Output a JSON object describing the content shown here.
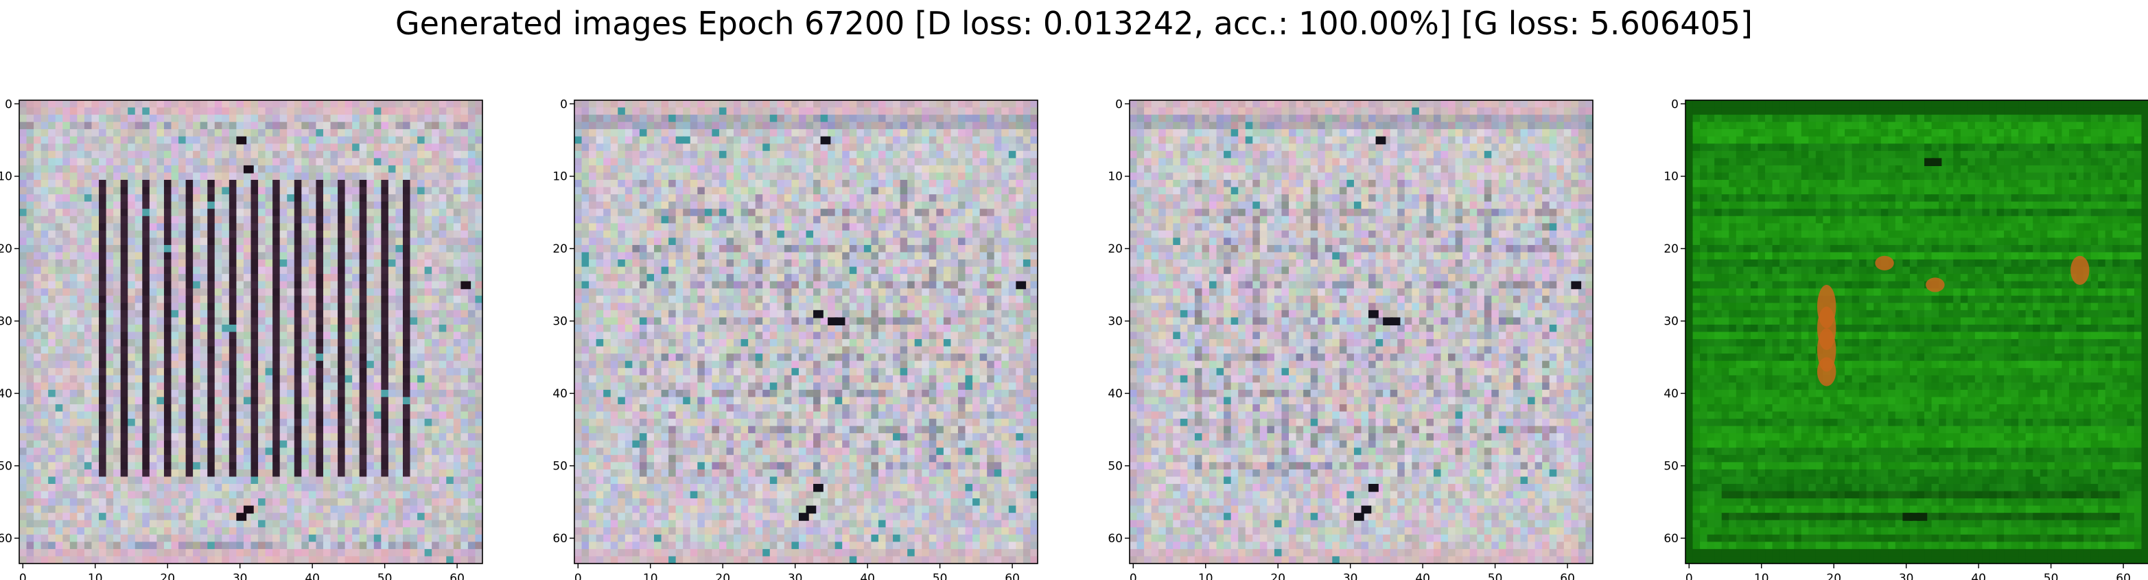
{
  "figure": {
    "title": "Generated images Epoch 67200 [D loss: 0.013242, acc.: 100.00%] [G loss: 5.606405]"
  },
  "chart_data": [
    {
      "type": "heatmap",
      "title": "",
      "xlabel": "",
      "ylabel": "",
      "xlim": [
        -0.5,
        63.5
      ],
      "ylim": [
        63.5,
        -0.5
      ],
      "xticks": [
        0,
        10,
        20,
        30,
        40,
        50,
        60
      ],
      "yticks": [
        0,
        10,
        20,
        30,
        40,
        50,
        60
      ],
      "grid": false,
      "image": {
        "rows": 64,
        "cols": 64,
        "pattern": "stripes",
        "palette": {
          "base": "#c7c4cb",
          "border": "#d6b7c3",
          "dark": "#1b0f1a",
          "accent": "#4fa3a8"
        },
        "dark_points": [
          [
            30,
            5
          ],
          [
            31,
            9
          ],
          [
            61,
            25
          ],
          [
            31,
            56
          ],
          [
            30,
            57
          ]
        ]
      }
    },
    {
      "type": "heatmap",
      "title": "",
      "xlabel": "",
      "ylabel": "",
      "xlim": [
        -0.5,
        63.5
      ],
      "ylim": [
        63.5,
        -0.5
      ],
      "xticks": [
        0,
        10,
        20,
        30,
        40,
        50,
        60
      ],
      "yticks": [
        0,
        10,
        20,
        30,
        40,
        50,
        60
      ],
      "grid": false,
      "image": {
        "rows": 64,
        "cols": 64,
        "pattern": "grid",
        "palette": {
          "base": "#c9c5cc",
          "border": "#d3b8c2",
          "dark": "#14121c",
          "accent": "#3f9aa1"
        },
        "dark_points": [
          [
            34,
            5
          ],
          [
            61,
            25
          ],
          [
            35,
            30
          ],
          [
            36,
            30
          ],
          [
            33,
            29
          ],
          [
            31,
            57
          ],
          [
            32,
            56
          ],
          [
            33,
            53
          ]
        ]
      }
    },
    {
      "type": "heatmap",
      "title": "",
      "xlabel": "",
      "ylabel": "",
      "xlim": [
        -0.5,
        63.5
      ],
      "ylim": [
        63.5,
        -0.5
      ],
      "xticks": [
        0,
        10,
        20,
        30,
        40,
        50,
        60
      ],
      "yticks": [
        0,
        10,
        20,
        30,
        40,
        50,
        60
      ],
      "grid": false,
      "image": {
        "rows": 64,
        "cols": 64,
        "pattern": "grid",
        "palette": {
          "base": "#c9c5cc",
          "border": "#d3b8c2",
          "dark": "#14121c",
          "accent": "#3f9aa1"
        },
        "dark_points": [
          [
            34,
            5
          ],
          [
            61,
            25
          ],
          [
            35,
            30
          ],
          [
            36,
            30
          ],
          [
            33,
            29
          ],
          [
            31,
            57
          ],
          [
            32,
            56
          ],
          [
            33,
            53
          ]
        ]
      }
    },
    {
      "type": "heatmap",
      "title": "",
      "xlabel": "",
      "ylabel": "",
      "xlim": [
        -0.5,
        63.5
      ],
      "ylim": [
        63.5,
        -0.5
      ],
      "xticks": [
        0,
        10,
        20,
        30,
        40,
        50,
        60
      ],
      "yticks": [
        0,
        10,
        20,
        30,
        40,
        50,
        60
      ],
      "grid": false,
      "image": {
        "rows": 64,
        "cols": 64,
        "pattern": "green",
        "palette": {
          "base": "#1a8a12",
          "border": "#0f5f0a",
          "dark": "#0b2a08",
          "accent": "#c9661c"
        },
        "dark_points": [
          [
            33,
            8
          ],
          [
            34,
            8
          ],
          [
            30,
            57
          ],
          [
            31,
            57
          ],
          [
            32,
            57
          ]
        ],
        "orange_blobs": [
          [
            19,
            28,
            3
          ],
          [
            19,
            31,
            3
          ],
          [
            19,
            34,
            3
          ],
          [
            19,
            37,
            2
          ],
          [
            34,
            25,
            1
          ],
          [
            54,
            23,
            2
          ],
          [
            27,
            22,
            1
          ]
        ]
      }
    }
  ]
}
